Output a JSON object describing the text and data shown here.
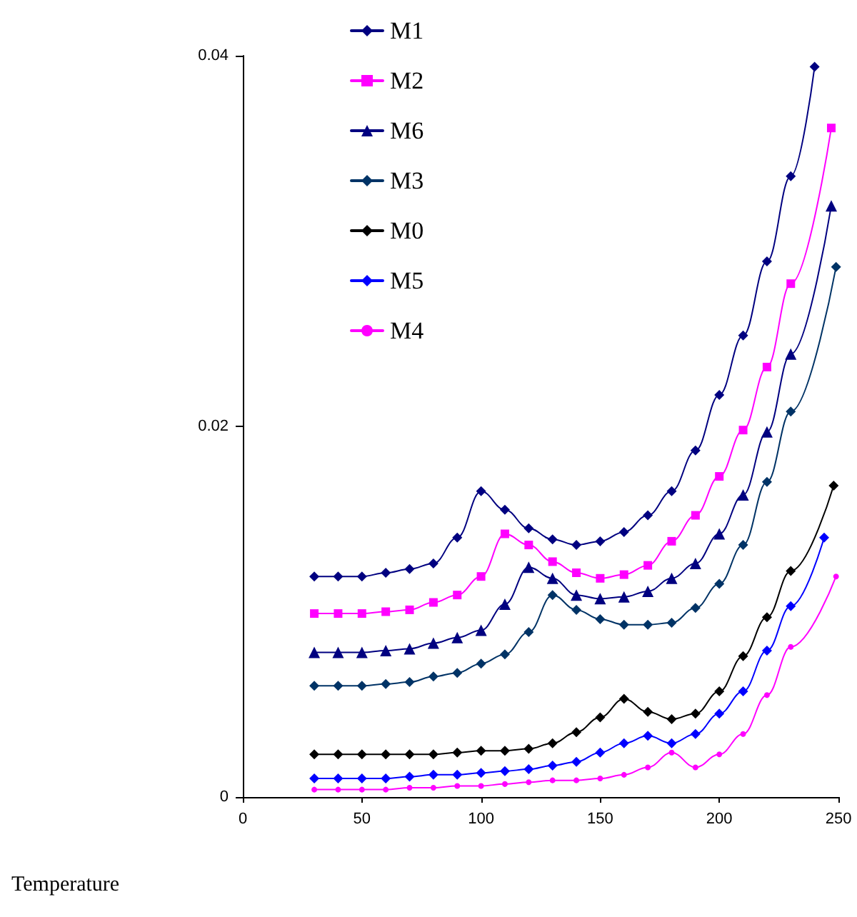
{
  "chart_data": {
    "type": "line",
    "xlabel": "Temperature",
    "xlim": [
      0,
      250
    ],
    "xticks": [
      0,
      50,
      100,
      150,
      200,
      250
    ],
    "ylim": [
      0,
      0.04
    ],
    "yticks": [
      0,
      0.02,
      0.04
    ],
    "grid": false,
    "legend": "top left",
    "line_style": "solid",
    "series": [
      {
        "name": "M1",
        "color": "#000080",
        "marker": "diamond",
        "x": [
          30,
          40,
          50,
          60,
          70,
          80,
          90,
          100,
          110,
          120,
          130,
          140,
          150,
          160,
          170,
          180,
          190,
          200,
          210,
          220,
          230,
          240
        ],
        "values": [
          0.0119,
          0.0119,
          0.0119,
          0.0121,
          0.0123,
          0.0126,
          0.014,
          0.0165,
          0.0155,
          0.0145,
          0.0139,
          0.0136,
          0.0138,
          0.0143,
          0.0152,
          0.0165,
          0.0187,
          0.0217,
          0.0249,
          0.0289,
          0.0335,
          0.0394
        ]
      },
      {
        "name": "M2",
        "color": "#ff00ff",
        "marker": "square",
        "x": [
          30,
          40,
          50,
          60,
          70,
          80,
          90,
          100,
          110,
          120,
          130,
          140,
          150,
          160,
          170,
          180,
          190,
          200,
          210,
          220,
          230,
          247
        ],
        "values": [
          0.0099,
          0.0099,
          0.0099,
          0.01,
          0.0101,
          0.0105,
          0.0109,
          0.0119,
          0.0142,
          0.0136,
          0.0127,
          0.0121,
          0.0118,
          0.012,
          0.0125,
          0.0138,
          0.0152,
          0.0173,
          0.0198,
          0.0232,
          0.0277,
          0.0361
        ]
      },
      {
        "name": "M6",
        "color": "#000080",
        "marker": "triangle",
        "x": [
          30,
          40,
          50,
          60,
          70,
          80,
          90,
          100,
          110,
          120,
          130,
          140,
          150,
          160,
          170,
          180,
          190,
          200,
          210,
          220,
          230,
          247
        ],
        "values": [
          0.0078,
          0.0078,
          0.0078,
          0.0079,
          0.008,
          0.0083,
          0.0086,
          0.009,
          0.0104,
          0.0124,
          0.0118,
          0.0109,
          0.0107,
          0.0108,
          0.0111,
          0.0118,
          0.0126,
          0.0142,
          0.0163,
          0.0197,
          0.0239,
          0.0319
        ]
      },
      {
        "name": "M3",
        "color": "#003366",
        "marker": "diamond",
        "x": [
          30,
          40,
          50,
          60,
          70,
          80,
          90,
          100,
          110,
          120,
          130,
          140,
          150,
          160,
          170,
          180,
          190,
          200,
          210,
          220,
          230,
          249
        ],
        "values": [
          0.006,
          0.006,
          0.006,
          0.0061,
          0.0062,
          0.0065,
          0.0067,
          0.0072,
          0.0077,
          0.0089,
          0.0109,
          0.0101,
          0.0096,
          0.0093,
          0.0093,
          0.0094,
          0.0102,
          0.0115,
          0.0136,
          0.017,
          0.0208,
          0.0286
        ]
      },
      {
        "name": "M0",
        "color": "#000000",
        "marker": "diamond",
        "x": [
          30,
          40,
          50,
          60,
          70,
          80,
          90,
          100,
          110,
          120,
          130,
          140,
          150,
          160,
          170,
          180,
          190,
          200,
          210,
          220,
          230,
          248
        ],
        "values": [
          0.0023,
          0.0023,
          0.0023,
          0.0023,
          0.0023,
          0.0023,
          0.0024,
          0.0025,
          0.0025,
          0.0026,
          0.0029,
          0.0035,
          0.0043,
          0.0053,
          0.0046,
          0.0042,
          0.0045,
          0.0057,
          0.0076,
          0.0097,
          0.0122,
          0.0168
        ]
      },
      {
        "name": "M5",
        "color": "#0000ff",
        "marker": "diamond",
        "x": [
          30,
          40,
          50,
          60,
          70,
          80,
          90,
          100,
          110,
          120,
          130,
          140,
          150,
          160,
          170,
          180,
          190,
          200,
          210,
          220,
          230,
          244
        ],
        "values": [
          0.001,
          0.001,
          0.001,
          0.001,
          0.0011,
          0.0012,
          0.0012,
          0.0013,
          0.0014,
          0.0015,
          0.0017,
          0.0019,
          0.0024,
          0.0029,
          0.0033,
          0.0029,
          0.0034,
          0.0045,
          0.0057,
          0.0079,
          0.0103,
          0.014
        ]
      },
      {
        "name": "M4",
        "color": "#ff00ff",
        "marker": "circle",
        "x": [
          30,
          40,
          50,
          60,
          70,
          80,
          90,
          100,
          110,
          120,
          130,
          140,
          150,
          160,
          170,
          180,
          190,
          200,
          210,
          220,
          230,
          249
        ],
        "values": [
          0.0004,
          0.0004,
          0.0004,
          0.0004,
          0.0005,
          0.0005,
          0.0006,
          0.0006,
          0.0007,
          0.0008,
          0.0009,
          0.0009,
          0.001,
          0.0012,
          0.0016,
          0.0024,
          0.0016,
          0.0023,
          0.0034,
          0.0055,
          0.0081,
          0.0119
        ]
      }
    ]
  }
}
